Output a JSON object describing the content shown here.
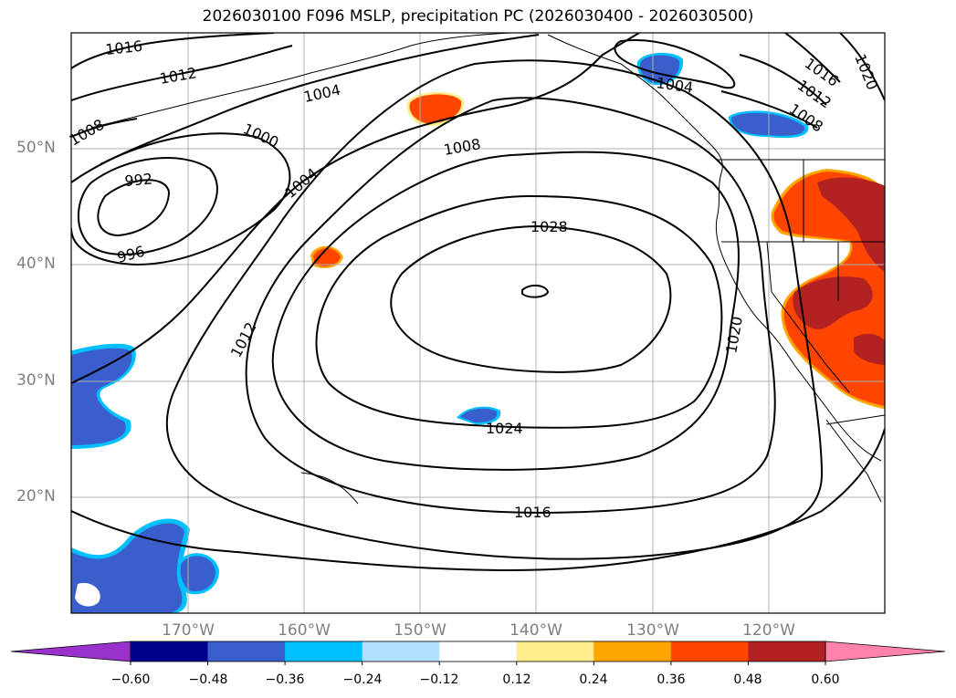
{
  "title": "2026030100 F096 MSLP, precipitation PC (2026030400 - 2026030500)",
  "lat_labels": [
    "50°N",
    "40°N",
    "30°N",
    "20°N"
  ],
  "lon_labels": [
    "170°W",
    "160°W",
    "150°W",
    "140°W",
    "130°W",
    "120°W"
  ],
  "isobar_labels": [
    "1016",
    "1012",
    "1004",
    "1008",
    "1000",
    "992",
    "996",
    "1004",
    "1008",
    "1028",
    "1012",
    "1024",
    "1016",
    "1020",
    "1004",
    "1016",
    "1012",
    "1008",
    "1020"
  ],
  "colorbar": {
    "ticks": [
      "−0.60",
      "−0.48",
      "−0.36",
      "−0.24",
      "−0.12",
      "0.12",
      "0.24",
      "0.36",
      "0.48",
      "0.60"
    ],
    "colors": [
      "#9932cc",
      "#00008b",
      "#3a5fcd",
      "#00bfff",
      "#b0e2ff",
      "#ffffff",
      "#ffec8b",
      "#ffa500",
      "#ff4500",
      "#b22222",
      "#ff82ab"
    ]
  }
}
